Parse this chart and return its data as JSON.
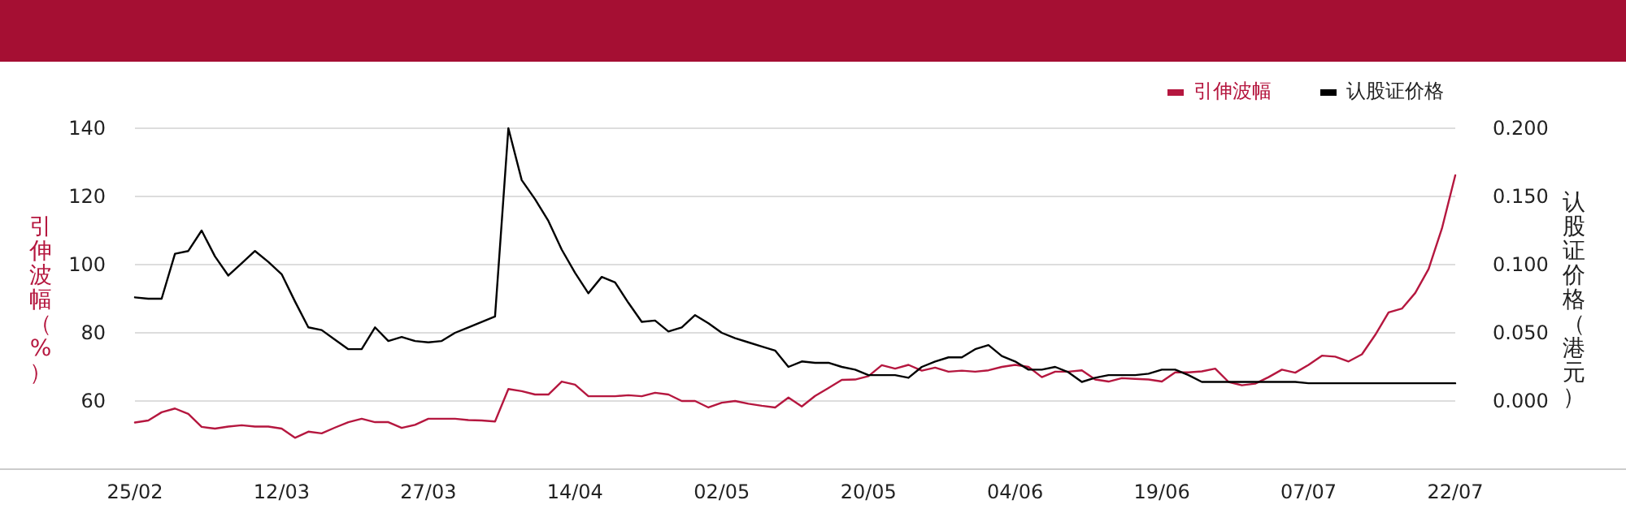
{
  "chart_data": {
    "type": "line",
    "categories": [
      "25/02",
      null,
      null,
      null,
      null,
      null,
      null,
      null,
      null,
      null,
      null,
      "12/03",
      null,
      null,
      null,
      null,
      null,
      null,
      null,
      null,
      null,
      null,
      "27/03",
      null,
      null,
      null,
      null,
      null,
      null,
      null,
      null,
      null,
      null,
      "14/04",
      null,
      null,
      null,
      null,
      null,
      null,
      null,
      null,
      null,
      null,
      "02/05",
      null,
      null,
      null,
      null,
      null,
      null,
      null,
      null,
      null,
      null,
      "20/05",
      null,
      null,
      null,
      null,
      null,
      null,
      null,
      null,
      null,
      null,
      "04/06",
      null,
      null,
      null,
      null,
      null,
      null,
      null,
      null,
      null,
      null,
      "19/06",
      null,
      null,
      null,
      null,
      null,
      null,
      null,
      null,
      null,
      null,
      "07/07",
      null,
      null,
      null,
      null,
      null,
      null,
      null,
      null,
      null,
      null,
      "22/07"
    ],
    "series": [
      {
        "name": "引伸波幅",
        "color": "#b5173f",
        "values": [
          53.7,
          54.3,
          56.7,
          57.8,
          56.2,
          52.4,
          51.9,
          52.5,
          52.9,
          52.5,
          52.5,
          51.9,
          49.2,
          51.0,
          50.5,
          52.2,
          53.8,
          54.8,
          53.8,
          53.8,
          52.1,
          53.0,
          54.8,
          54.8,
          54.8,
          54.4,
          54.3,
          54.0,
          63.5,
          62.9,
          61.9,
          61.9,
          65.7,
          64.8,
          61.4,
          61.4,
          61.4,
          61.7,
          61.4,
          62.4,
          61.9,
          60.0,
          60.0,
          58.1,
          59.5,
          60.0,
          59.2,
          58.6,
          58.1,
          61.0,
          58.4,
          61.5,
          63.8,
          66.2,
          66.3,
          67.3,
          70.5,
          69.5,
          70.6,
          68.9,
          69.8,
          68.6,
          68.9,
          68.6,
          69.0,
          70.0,
          70.6,
          70.0,
          67.0,
          68.6,
          68.6,
          69.0,
          66.3,
          65.7,
          66.7,
          66.5,
          66.3,
          65.7,
          68.4,
          68.4,
          68.7,
          69.5,
          65.6,
          64.6,
          65.1,
          67.0,
          69.2,
          68.3,
          70.6,
          73.3,
          73.0,
          71.6,
          73.7,
          79.4,
          86.0,
          87.1,
          91.7,
          98.7,
          110.6,
          126.2
        ]
      },
      {
        "name": "认股证价格",
        "color": "#000000",
        "axis": "y2",
        "values": [
          0.076,
          0.075,
          0.075,
          0.108,
          0.11,
          0.125,
          0.106,
          0.092,
          0.101,
          0.11,
          0.102,
          0.093,
          0.073,
          0.054,
          0.052,
          0.045,
          0.038,
          0.038,
          0.054,
          0.044,
          0.047,
          0.044,
          0.043,
          0.044,
          0.05,
          0.054,
          0.058,
          0.062,
          0.2,
          0.162,
          0.148,
          0.132,
          0.111,
          0.094,
          0.079,
          0.091,
          0.087,
          0.072,
          0.058,
          0.059,
          0.051,
          0.054,
          0.063,
          0.057,
          0.05,
          0.046,
          0.043,
          0.04,
          0.037,
          0.025,
          0.029,
          0.028,
          0.028,
          0.025,
          0.023,
          0.019,
          0.019,
          0.019,
          0.017,
          0.025,
          0.029,
          0.032,
          0.032,
          0.038,
          0.041,
          0.033,
          0.029,
          0.023,
          0.023,
          0.025,
          0.021,
          0.014,
          0.017,
          0.019,
          0.019,
          0.019,
          0.02,
          0.023,
          0.023,
          0.019,
          0.014,
          0.014,
          0.014,
          0.014,
          0.014,
          0.014,
          0.014,
          0.014,
          0.013,
          0.013,
          0.013,
          0.013,
          0.013,
          0.013,
          0.013,
          0.013,
          0.013,
          0.013,
          0.013,
          0.013
        ]
      }
    ],
    "ylabel": "引伸波幅（%）",
    "y2label": "认股证价格（港元）",
    "ylim": [
      40,
      140
    ],
    "yticks": [
      60,
      80,
      100,
      120,
      140
    ],
    "y2lim": [
      -0.05,
      0.2
    ],
    "y2ticks": [
      {
        "value": 0,
        "label": "0.000"
      },
      {
        "value": 0.05,
        "label": "0.050"
      },
      {
        "value": 0.1,
        "label": "0.100"
      },
      {
        "value": 0.15,
        "label": "0.150"
      },
      {
        "value": 0.2,
        "label": "0.200"
      }
    ],
    "grid": "y",
    "legend": "top right",
    "marker": "none",
    "line_style": "solid"
  }
}
